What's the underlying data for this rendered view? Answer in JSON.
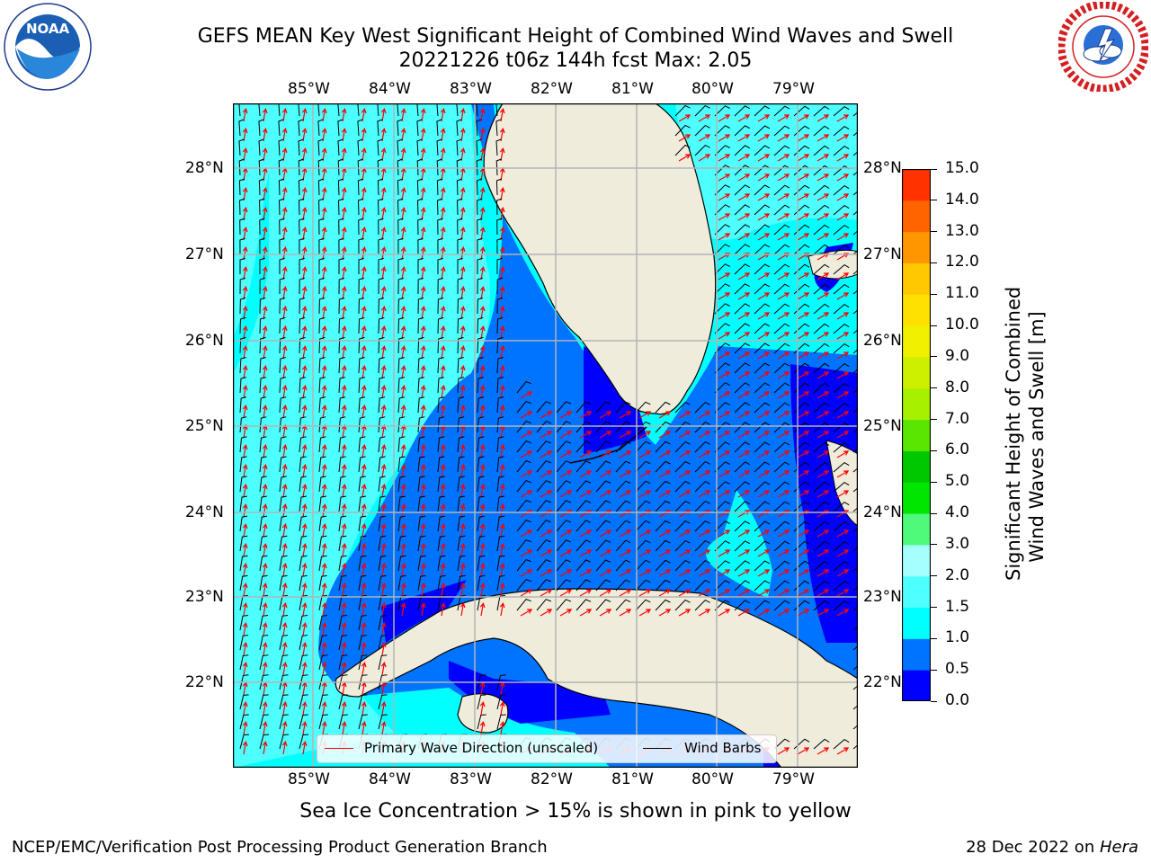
{
  "title": {
    "line1": "GEFS MEAN Key West Significant Height of Combined Wind Waves and Swell",
    "line2": "20221226 t06z 144h fcst   Max: 2.05"
  },
  "map": {
    "lon_labels": [
      "85°W",
      "84°W",
      "83°W",
      "82°W",
      "81°W",
      "80°W",
      "79°W"
    ],
    "lat_labels": [
      "28°N",
      "27°N",
      "26°N",
      "25°N",
      "24°N",
      "23°N",
      "22°N"
    ],
    "legend": {
      "wave_label": "Primary Wave Direction (unscaled)",
      "wave_color": "#ff0000",
      "barb_label": "Wind Barbs",
      "barb_color": "#000000"
    },
    "colors": {
      "land": "#efecdc",
      "band_0_0_5": "#0000ff",
      "band_0_5_1_0": "#0073ff",
      "band_1_0_1_5": "#00ffff",
      "band_1_5_2_0": "#4dffff",
      "grid": "#b4b4b4"
    }
  },
  "colorbar": {
    "label": "Significant Height of Combined\nWind Waves and Swell [m]",
    "label_line1": "Significant Height of Combined",
    "label_line2": "Wind Waves and Swell [m]",
    "ticks": [
      "15.0",
      "14.0",
      "13.0",
      "12.0",
      "11.0",
      "10.0",
      "9.0",
      "8.0",
      "7.0",
      "6.0",
      "5.0",
      "4.0",
      "3.0",
      "2.0",
      "1.5",
      "1.0",
      "0.5",
      "0.0"
    ],
    "colors_bottom_to_top": [
      "#0000ff",
      "#0073ff",
      "#00ffff",
      "#4dffff",
      "#a6ffff",
      "#4ffa7a",
      "#00e600",
      "#00c800",
      "#5ae600",
      "#a6f000",
      "#cdf000",
      "#f0f000",
      "#ffe100",
      "#ffc800",
      "#ff9600",
      "#ff6400",
      "#ff3200"
    ]
  },
  "logos": {
    "noaa_text": "NOAA",
    "noaa_ring_text": "NATIONAL OCEANIC AND ATMOSPHERIC ADMINISTRATION · U.S. DEPARTMENT OF COMMERCE",
    "nws_ring_text": "NATIONAL WEATHER SERVICE"
  },
  "sea_ice_note": "Sea Ice Concentration > 15% is shown in pink to yellow",
  "footer": {
    "left": "NCEP/EMC/Verification Post Processing Product Generation Branch",
    "right_prefix": "28 Dec 2022 on ",
    "right_host": "Hera"
  }
}
